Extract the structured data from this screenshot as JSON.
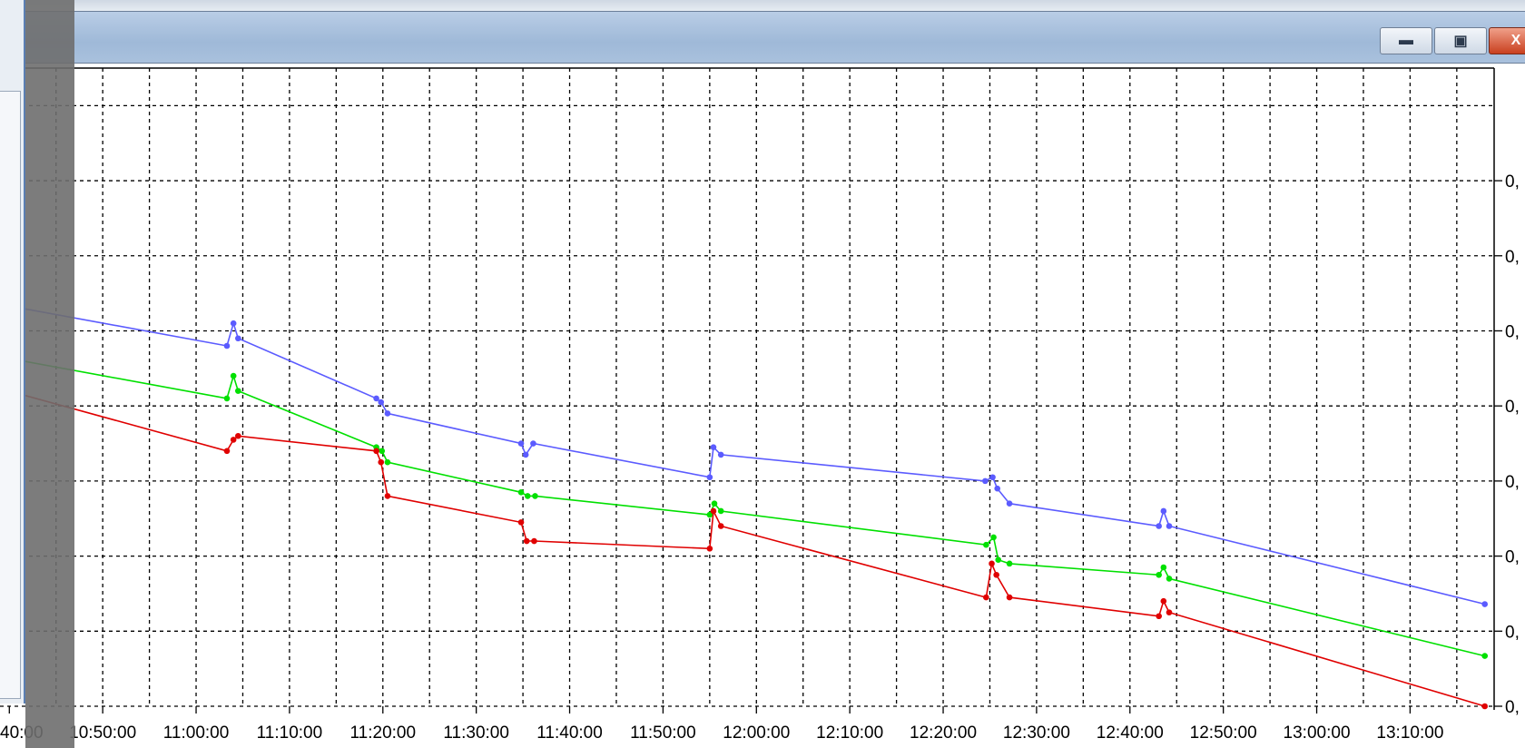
{
  "window": {
    "minimize_icon": "minimize-icon",
    "maximize_icon": "maximize-icon",
    "close_icon": "close-icon",
    "close_glyph": "X"
  },
  "chart_data": {
    "type": "line",
    "title": "",
    "xlabel": "",
    "ylabel": "",
    "x_tick_labels": [
      "40:00",
      "10:50:00",
      "11:00:00",
      "11:10:00",
      "11:20:00",
      "11:30:00",
      "11:40:00",
      "11:50:00",
      "12:00:00",
      "12:10:00",
      "12:20:00",
      "12:30:00",
      "12:40:00",
      "12:50:00",
      "13:00:00",
      "13:10:00"
    ],
    "x_tick_minutes": [
      40,
      50,
      60,
      70,
      80,
      90,
      100,
      110,
      120,
      130,
      140,
      150,
      160,
      170,
      180,
      190
    ],
    "xlim_minutes": [
      39,
      199
    ],
    "y_tick_labels": [
      "0,",
      "0,",
      "0,",
      "0,",
      "0,",
      "0,",
      "0,",
      "0,"
    ],
    "ylim": [
      0,
      8.5
    ],
    "grid": true,
    "legend": "none",
    "series": [
      {
        "color": "#5b5bff",
        "x_minutes": [
          37,
          63.3,
          64,
          64.5,
          79.3,
          79.8,
          80.5,
          94.8,
          95.3,
          96.1,
          115,
          115.4,
          116.2,
          144.5,
          145.3,
          145.8,
          147.1,
          163.1,
          163.6,
          164.2,
          198
        ],
        "values": [
          5.4,
          4.8,
          5.1,
          4.9,
          4.1,
          4.05,
          3.9,
          3.5,
          3.35,
          3.5,
          3.05,
          3.45,
          3.35,
          3.0,
          3.05,
          2.9,
          2.7,
          2.4,
          2.6,
          2.4,
          1.36
        ]
      },
      {
        "color": "#00e000",
        "x_minutes": [
          37,
          63.3,
          64,
          64.5,
          79.3,
          79.9,
          80.5,
          94.8,
          95.5,
          96.3,
          115,
          115.5,
          116.2,
          144.6,
          145.4,
          145.9,
          147.1,
          163.1,
          163.6,
          164.2,
          198
        ],
        "values": [
          4.7,
          4.1,
          4.4,
          4.2,
          3.45,
          3.4,
          3.25,
          2.85,
          2.8,
          2.8,
          2.55,
          2.7,
          2.6,
          2.15,
          2.25,
          1.95,
          1.9,
          1.75,
          1.85,
          1.7,
          0.67
        ]
      },
      {
        "color": "#e00000",
        "x_minutes": [
          37,
          63.3,
          64,
          64.5,
          79.3,
          79.8,
          80.5,
          94.8,
          95.4,
          96.2,
          115,
          115.4,
          116.2,
          144.6,
          145.2,
          145.7,
          147.1,
          163.1,
          163.6,
          164.2,
          198
        ],
        "values": [
          4.3,
          3.4,
          3.55,
          3.6,
          3.4,
          3.25,
          2.8,
          2.45,
          2.2,
          2.2,
          2.1,
          2.6,
          2.4,
          1.45,
          1.9,
          1.75,
          1.45,
          1.2,
          1.4,
          1.25,
          0.0
        ]
      }
    ]
  }
}
